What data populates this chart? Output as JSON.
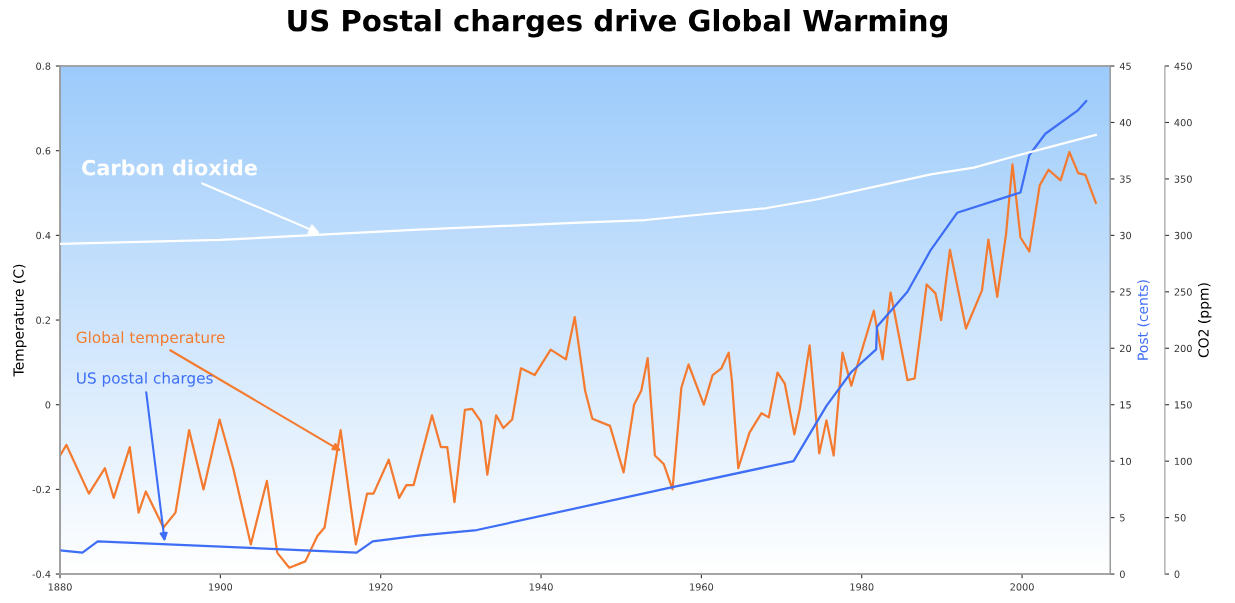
{
  "chart_data": {
    "type": "line",
    "title": "US Postal charges drive Global Warming",
    "ylabel": "Temperature (C)",
    "y2label": "Post (cents)",
    "y3label": "CO2 (ppm)",
    "xlim": [
      1880,
      2011
    ],
    "xticks": [
      1880,
      1900,
      1920,
      1940,
      1960,
      1980,
      2000
    ],
    "ylim": [
      -0.4,
      0.8
    ],
    "yticks": [
      -0.4,
      -0.2,
      0,
      0.2,
      0.4,
      0.6,
      0.8
    ],
    "y2lim": [
      0,
      45
    ],
    "y2ticks": [
      0,
      5,
      10,
      15,
      20,
      25,
      30,
      35,
      40,
      45
    ],
    "y3lim": [
      0,
      450
    ],
    "y3ticks": [
      0,
      50,
      100,
      150,
      200,
      250,
      300,
      350,
      400,
      450
    ],
    "grid": false,
    "legend": false,
    "marker": "none",
    "line_style": "solid",
    "series": [
      {
        "name": "Carbon dioxide",
        "color": "#ffffff",
        "axis": "y3",
        "x": [
          1880,
          1900,
          1924.7,
          1944,
          1953,
          1968,
          1974.5,
          1988.6,
          1994,
          1998.5,
          2009.2
        ],
        "values": [
          292.5,
          296,
          305,
          311,
          313.6,
          324,
          332,
          354,
          360,
          369,
          389
        ]
      },
      {
        "name": "Global temperature",
        "color": "#f47a30",
        "axis": "y",
        "x": [
          1880,
          1880.8,
          1883.6,
          1885.6,
          1886.7,
          1888.7,
          1889.8,
          1890.7,
          1892.9,
          1894.4,
          1896.1,
          1897.9,
          1899.9,
          1901.6,
          1903.8,
          1905.8,
          1907.1,
          1908.6,
          1910.6,
          1912.1,
          1913.0,
          1915.0,
          1916.9,
          1918.3,
          1919.1,
          1921.0,
          1922.3,
          1923.2,
          1924.1,
          1926.4,
          1927.5,
          1928.3,
          1929.2,
          1930.5,
          1931.4,
          1932.5,
          1933.3,
          1934.4,
          1935.3,
          1936.4,
          1937.5,
          1939.2,
          1941.2,
          1943.1,
          1944.2,
          1945.5,
          1946.4,
          1948.6,
          1950.3,
          1951.6,
          1952.5,
          1953.3,
          1954.2,
          1955.3,
          1956.4,
          1957.5,
          1958.4,
          1960.3,
          1961.4,
          1962.5,
          1963.4,
          1963.8,
          1964.6,
          1966.0,
          1967.5,
          1968.4,
          1969.5,
          1970.4,
          1971.6,
          1972.3,
          1973.5,
          1974.7,
          1975.6,
          1976.5,
          1977.6,
          1978.7,
          1979.8,
          1981.5,
          1982.6,
          1983.6,
          1985.7,
          1986.6,
          1988.1,
          1989.2,
          1989.9,
          1991.0,
          1993.0,
          1995.0,
          1995.8,
          1996.9,
          1998.0,
          1998.8,
          1999.8,
          2000.9,
          2002.2,
          2003.3,
          2004.8,
          2005.9,
          2007.0,
          2007.9,
          2009.2
        ],
        "values": [
          -0.12,
          -0.095,
          -0.21,
          -0.15,
          -0.22,
          -0.1,
          -0.255,
          -0.205,
          -0.29,
          -0.255,
          -0.06,
          -0.2,
          -0.035,
          -0.15,
          -0.33,
          -0.18,
          -0.35,
          -0.385,
          -0.37,
          -0.31,
          -0.29,
          -0.06,
          -0.33,
          -0.21,
          -0.21,
          -0.13,
          -0.22,
          -0.19,
          -0.19,
          -0.025,
          -0.1,
          -0.1,
          -0.23,
          -0.012,
          -0.01,
          -0.04,
          -0.165,
          -0.025,
          -0.055,
          -0.035,
          0.086,
          0.07,
          0.13,
          0.107,
          0.207,
          0.033,
          -0.033,
          -0.05,
          -0.16,
          0.0,
          0.033,
          0.11,
          -0.12,
          -0.14,
          -0.2,
          0.04,
          0.095,
          0.0,
          0.07,
          0.086,
          0.123,
          0.058,
          -0.15,
          -0.066,
          -0.02,
          -0.03,
          0.076,
          0.05,
          -0.07,
          -0.008,
          0.14,
          -0.115,
          -0.037,
          -0.12,
          0.123,
          0.045,
          0.115,
          0.222,
          0.107,
          0.265,
          0.058,
          0.062,
          0.284,
          0.263,
          0.2,
          0.366,
          0.18,
          0.27,
          0.39,
          0.255,
          0.403,
          0.568,
          0.395,
          0.362,
          0.518,
          0.555,
          0.53,
          0.597,
          0.547,
          0.543,
          0.477
        ]
      },
      {
        "name": "US postal charges",
        "color": "#3d6ef5",
        "axis": "y2",
        "x": [
          1880,
          1882.8,
          1884.7,
          1917.0,
          1919.0,
          1924.7,
          1932.0,
          1956.4,
          1971.5,
          1975.6,
          1978.7,
          1981.8,
          1981.9,
          1985.7,
          1988.6,
          1991.9,
          1999.8,
          2000.9,
          2002.9,
          2007.0,
          2008.0
        ],
        "values": [
          2.1,
          1.9,
          2.9,
          1.9,
          2.9,
          3.4,
          3.9,
          7.7,
          10,
          14.9,
          17.9,
          19.9,
          21.9,
          25.0,
          28.7,
          32.0,
          33.8,
          37.1,
          39.0,
          41.1,
          41.9
        ]
      }
    ]
  }
}
